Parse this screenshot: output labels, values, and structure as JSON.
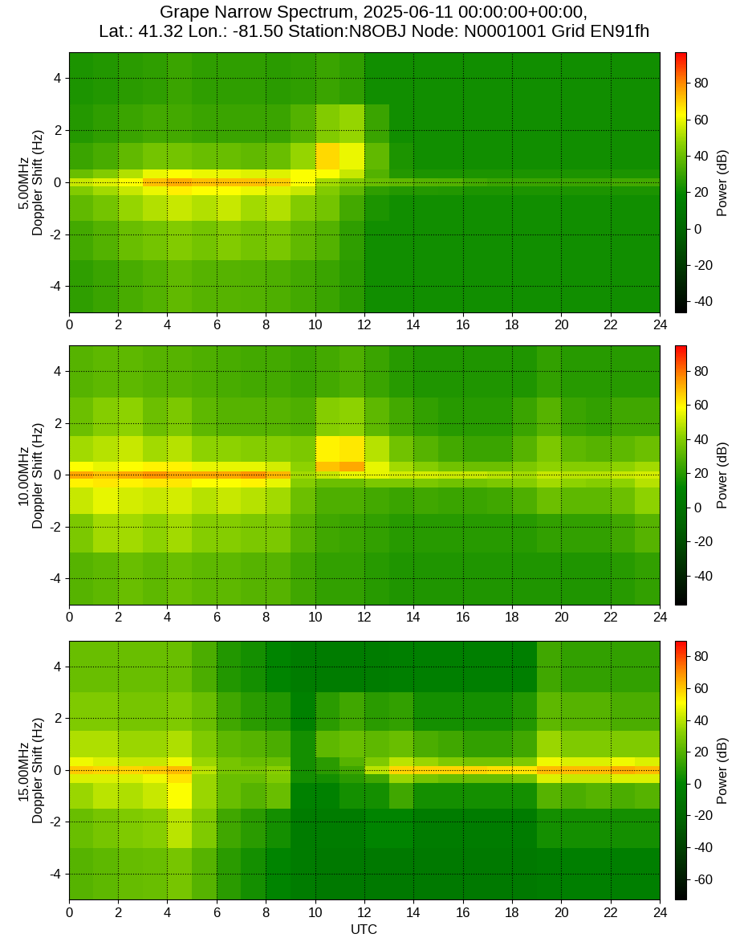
{
  "chart_data": [
    {
      "type": "heatmap",
      "title": "Grape Narrow Spectrum, 2025-06-11 00:00:00+00:00,\nLat.: 41.32 Lon.: -81.50 Station:N8OBJ Node: N0001001 Grid EN91fh",
      "y_label": "5.00MHz\nDoppler Shift (Hz)",
      "x_edges": [
        0,
        1,
        2,
        3,
        4,
        5,
        6,
        7,
        8,
        9,
        10,
        11,
        12,
        13,
        14,
        15,
        16,
        17,
        18,
        19,
        20,
        21,
        22,
        23,
        24
      ],
      "y_edges": [
        -5,
        -3,
        -1.5,
        -0.5,
        -0.15,
        0.15,
        0.5,
        1.5,
        3,
        5
      ],
      "cells": [
        [
          28,
          30,
          33,
          35,
          38,
          36,
          36,
          35,
          34,
          32,
          30,
          27,
          22,
          22,
          22,
          22,
          22,
          22,
          22,
          22,
          22,
          22,
          22,
          22
        ],
        [
          32,
          35,
          40,
          42,
          45,
          42,
          45,
          42,
          43,
          38,
          35,
          28,
          22,
          22,
          22,
          22,
          22,
          22,
          22,
          22,
          22,
          22,
          22,
          22
        ],
        [
          38,
          42,
          48,
          52,
          55,
          52,
          55,
          50,
          52,
          45,
          42,
          32,
          24,
          22,
          22,
          22,
          22,
          22,
          22,
          22,
          22,
          22,
          22,
          22
        ],
        [
          45,
          50,
          55,
          60,
          65,
          62,
          62,
          60,
          58,
          55,
          45,
          38,
          28,
          26,
          26,
          25,
          24,
          24,
          24,
          24,
          24,
          24,
          24,
          24
        ],
        [
          55,
          58,
          62,
          72,
          75,
          72,
          72,
          72,
          70,
          62,
          50,
          45,
          40,
          38,
          36,
          35,
          32,
          30,
          30,
          30,
          30,
          30,
          32,
          32
        ],
        [
          40,
          45,
          52,
          60,
          62,
          60,
          60,
          58,
          58,
          62,
          62,
          55,
          35,
          26,
          24,
          24,
          24,
          24,
          24,
          24,
          24,
          24,
          24,
          24
        ],
        [
          30,
          33,
          38,
          42,
          42,
          40,
          40,
          38,
          40,
          48,
          68,
          60,
          38,
          24,
          22,
          22,
          22,
          22,
          22,
          22,
          22,
          22,
          22,
          22
        ],
        [
          26,
          28,
          30,
          32,
          32,
          30,
          30,
          30,
          30,
          35,
          45,
          48,
          30,
          22,
          22,
          22,
          22,
          22,
          22,
          22,
          22,
          22,
          22,
          22
        ],
        [
          24,
          25,
          27,
          28,
          30,
          28,
          28,
          28,
          27,
          28,
          30,
          28,
          22,
          22,
          22,
          22,
          22,
          22,
          22,
          22,
          22,
          22,
          22,
          22
        ]
      ],
      "xlim": [
        0,
        24
      ],
      "xticks": [
        0,
        2,
        4,
        6,
        8,
        10,
        12,
        14,
        16,
        18,
        20,
        22,
        24
      ],
      "ylim": [
        -5,
        5
      ],
      "yticks": [
        -4,
        -2,
        0,
        2,
        4
      ],
      "clim": [
        -46,
        97
      ],
      "cticks": [
        -40,
        -20,
        0,
        20,
        40,
        60,
        80
      ],
      "colorbar_label": "Power (dB)",
      "grid": true
    },
    {
      "type": "heatmap",
      "y_label": "10.00MHz\nDoppler Shift (Hz)",
      "x_edges": [
        0,
        1,
        2,
        3,
        4,
        5,
        6,
        7,
        8,
        9,
        10,
        11,
        12,
        13,
        14,
        15,
        16,
        17,
        18,
        19,
        20,
        21,
        22,
        23,
        24
      ],
      "y_edges": [
        -5,
        -3,
        -1.5,
        -0.5,
        -0.15,
        0.15,
        0.5,
        1.5,
        3,
        5
      ],
      "cells": [
        [
          30,
          32,
          34,
          32,
          34,
          32,
          32,
          30,
          30,
          25,
          22,
          22,
          20,
          18,
          18,
          18,
          18,
          18,
          18,
          18,
          18,
          18,
          20,
          22
        ],
        [
          38,
          45,
          45,
          42,
          45,
          40,
          40,
          38,
          38,
          30,
          25,
          24,
          22,
          20,
          20,
          20,
          20,
          20,
          20,
          22,
          22,
          22,
          25,
          30
        ],
        [
          50,
          55,
          52,
          50,
          52,
          48,
          50,
          48,
          45,
          35,
          28,
          28,
          26,
          24,
          25,
          24,
          24,
          25,
          28,
          35,
          32,
          32,
          35,
          42
        ],
        [
          60,
          62,
          60,
          62,
          62,
          58,
          58,
          60,
          55,
          40,
          35,
          35,
          38,
          38,
          38,
          36,
          36,
          38,
          40,
          45,
          42,
          40,
          42,
          48
        ],
        [
          72,
          68,
          72,
          75,
          72,
          72,
          72,
          75,
          70,
          45,
          50,
          55,
          55,
          52,
          52,
          50,
          50,
          48,
          45,
          50,
          48,
          48,
          50,
          52
        ],
        [
          58,
          55,
          58,
          60,
          60,
          55,
          55,
          55,
          52,
          42,
          68,
          72,
          55,
          45,
          40,
          36,
          35,
          35,
          38,
          42,
          40,
          40,
          42,
          45
        ],
        [
          45,
          48,
          50,
          45,
          48,
          42,
          42,
          40,
          40,
          38,
          60,
          62,
          48,
          36,
          30,
          26,
          24,
          24,
          30,
          38,
          32,
          30,
          32,
          35
        ],
        [
          35,
          40,
          42,
          35,
          38,
          32,
          30,
          30,
          30,
          28,
          40,
          42,
          32,
          26,
          22,
          20,
          20,
          20,
          24,
          30,
          24,
          22,
          25,
          25
        ],
        [
          30,
          32,
          32,
          30,
          30,
          28,
          27,
          26,
          26,
          24,
          26,
          28,
          24,
          20,
          18,
          18,
          18,
          18,
          18,
          22,
          20,
          20,
          20,
          20
        ]
      ],
      "xlim": [
        0,
        24
      ],
      "xticks": [
        0,
        2,
        4,
        6,
        8,
        10,
        12,
        14,
        16,
        18,
        20,
        22,
        24
      ],
      "ylim": [
        -5,
        5
      ],
      "yticks": [
        -4,
        -2,
        0,
        2,
        4
      ],
      "clim": [
        -57,
        95
      ],
      "cticks": [
        -40,
        -20,
        0,
        20,
        40,
        60,
        80
      ],
      "colorbar_label": "Power (dB)",
      "grid": true
    },
    {
      "type": "heatmap",
      "y_label": "15.00MHz\nDoppler Shift (Hz)",
      "x_label": "UTC",
      "x_edges": [
        0,
        1,
        2,
        3,
        4,
        5,
        6,
        7,
        8,
        9,
        10,
        11,
        12,
        13,
        14,
        15,
        16,
        17,
        18,
        19,
        20,
        21,
        22,
        23,
        24
      ],
      "y_edges": [
        -5,
        -3,
        -1.5,
        -0.5,
        -0.15,
        0.15,
        0.5,
        1.5,
        3,
        5
      ],
      "cells": [
        [
          20,
          22,
          24,
          25,
          28,
          20,
          10,
          5,
          0,
          -5,
          -8,
          -8,
          -8,
          -8,
          -8,
          -8,
          -8,
          -8,
          -8,
          -5,
          -3,
          -3,
          -3,
          -3
        ],
        [
          25,
          28,
          30,
          32,
          40,
          30,
          15,
          10,
          5,
          -5,
          -5,
          -5,
          0,
          0,
          -5,
          -5,
          -5,
          -5,
          -5,
          5,
          5,
          5,
          5,
          5
        ],
        [
          35,
          40,
          38,
          42,
          50,
          35,
          25,
          20,
          25,
          -2,
          -2,
          5,
          5,
          15,
          5,
          5,
          5,
          5,
          5,
          20,
          18,
          20,
          18,
          20
        ],
        [
          45,
          45,
          45,
          48,
          55,
          35,
          25,
          25,
          30,
          5,
          5,
          10,
          15,
          35,
          28,
          25,
          25,
          25,
          28,
          45,
          42,
          42,
          45,
          45
        ],
        [
          60,
          58,
          58,
          60,
          62,
          40,
          28,
          28,
          32,
          5,
          10,
          15,
          40,
          58,
          58,
          58,
          58,
          56,
          55,
          62,
          62,
          62,
          65,
          62
        ],
        [
          48,
          45,
          42,
          42,
          48,
          35,
          28,
          25,
          25,
          5,
          10,
          20,
          30,
          40,
          35,
          30,
          28,
          28,
          30,
          48,
          45,
          45,
          48,
          45
        ],
        [
          38,
          38,
          35,
          35,
          38,
          30,
          22,
          20,
          18,
          5,
          22,
          25,
          22,
          25,
          18,
          15,
          12,
          12,
          15,
          35,
          30,
          30,
          30,
          30
        ],
        [
          30,
          30,
          28,
          28,
          30,
          25,
          15,
          10,
          8,
          -2,
          10,
          15,
          10,
          12,
          5,
          5,
          5,
          5,
          8,
          22,
          20,
          20,
          18,
          18
        ],
        [
          25,
          25,
          25,
          25,
          25,
          18,
          8,
          5,
          0,
          -5,
          -5,
          -5,
          -5,
          -3,
          -3,
          -3,
          -3,
          -3,
          -3,
          15,
          12,
          12,
          12,
          12
        ]
      ],
      "xlim": [
        0,
        24
      ],
      "xticks": [
        0,
        2,
        4,
        6,
        8,
        10,
        12,
        14,
        16,
        18,
        20,
        22,
        24
      ],
      "ylim": [
        -5,
        5
      ],
      "yticks": [
        -4,
        -2,
        0,
        2,
        4
      ],
      "clim": [
        -73,
        90
      ],
      "cticks": [
        -60,
        -40,
        -20,
        0,
        20,
        40,
        60,
        80
      ],
      "colorbar_label": "Power (dB)",
      "grid": true
    }
  ]
}
